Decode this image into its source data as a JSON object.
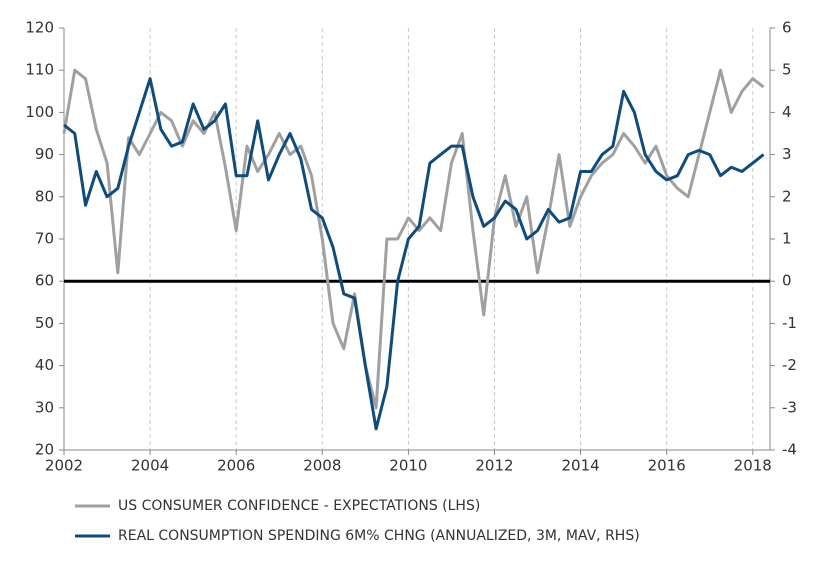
{
  "chart_data": {
    "type": "line",
    "x": [
      2002.0,
      2002.25,
      2002.5,
      2002.75,
      2003.0,
      2003.25,
      2003.5,
      2003.75,
      2004.0,
      2004.25,
      2004.5,
      2004.75,
      2005.0,
      2005.25,
      2005.5,
      2005.75,
      2006.0,
      2006.25,
      2006.5,
      2006.75,
      2007.0,
      2007.25,
      2007.5,
      2007.75,
      2008.0,
      2008.25,
      2008.5,
      2008.75,
      2009.0,
      2009.25,
      2009.5,
      2009.75,
      2010.0,
      2010.25,
      2010.5,
      2010.75,
      2011.0,
      2011.25,
      2011.5,
      2011.75,
      2012.0,
      2012.25,
      2012.5,
      2012.75,
      2013.0,
      2013.25,
      2013.5,
      2013.75,
      2014.0,
      2014.25,
      2014.5,
      2014.75,
      2015.0,
      2015.25,
      2015.5,
      2015.75,
      2016.0,
      2016.25,
      2016.5,
      2016.75,
      2017.0,
      2017.25,
      2017.5,
      2017.75,
      2018.0,
      2018.25
    ],
    "series": [
      {
        "name": "US CONSUMER CONFIDENCE - EXPECTATIONS (LHS)",
        "color": "#a0a0a0",
        "values": [
          95,
          110,
          108,
          96,
          88,
          62,
          94,
          90,
          95,
          100,
          98,
          92,
          98,
          95,
          100,
          87,
          72,
          92,
          86,
          90,
          95,
          90,
          92,
          85,
          70,
          50,
          44,
          57,
          40,
          30,
          70,
          70,
          75,
          72,
          75,
          72,
          88,
          95,
          72,
          52,
          75,
          85,
          73,
          80,
          62,
          75,
          90,
          73,
          80,
          85,
          88,
          90,
          95,
          92,
          88,
          92,
          85,
          82,
          80,
          90,
          100,
          110,
          100,
          105,
          108,
          106
        ]
      },
      {
        "name": "REAL CONSUMPTION SPENDING 6M% CHNG (ANNUALIZED, 3M, MAV, RHS)",
        "color": "#0f4c7c",
        "axis": "y2",
        "values": [
          3.7,
          3.5,
          1.8,
          2.6,
          2.0,
          2.2,
          3.2,
          4.0,
          4.8,
          3.6,
          3.2,
          3.3,
          4.2,
          3.6,
          3.8,
          4.2,
          2.5,
          2.5,
          3.8,
          2.4,
          3.0,
          3.5,
          2.9,
          1.7,
          1.5,
          0.8,
          -0.3,
          -0.4,
          -2.0,
          -3.5,
          -2.5,
          0.0,
          1.0,
          1.3,
          2.8,
          3.0,
          3.2,
          3.2,
          2.0,
          1.3,
          1.5,
          1.9,
          1.7,
          1.0,
          1.2,
          1.7,
          1.4,
          1.5,
          2.6,
          2.6,
          3.0,
          3.2,
          4.5,
          4.0,
          3.0,
          2.6,
          2.4,
          2.5,
          3.0,
          3.1,
          3.0,
          2.5,
          2.7,
          2.6,
          2.8,
          3.0
        ]
      }
    ],
    "xlim": [
      2002,
      2018.4
    ],
    "xticks": [
      2002,
      2004,
      2006,
      2008,
      2010,
      2012,
      2014,
      2016,
      2018
    ],
    "ylim": [
      20,
      120
    ],
    "yticks": [
      20,
      30,
      40,
      50,
      60,
      70,
      80,
      90,
      100,
      110,
      120
    ],
    "y2lim": [
      -4,
      6
    ],
    "y2ticks": [
      -4,
      -3,
      -2,
      -1,
      0,
      1,
      2,
      3,
      4,
      5,
      6
    ],
    "grid": "x",
    "legend": "bottom"
  }
}
